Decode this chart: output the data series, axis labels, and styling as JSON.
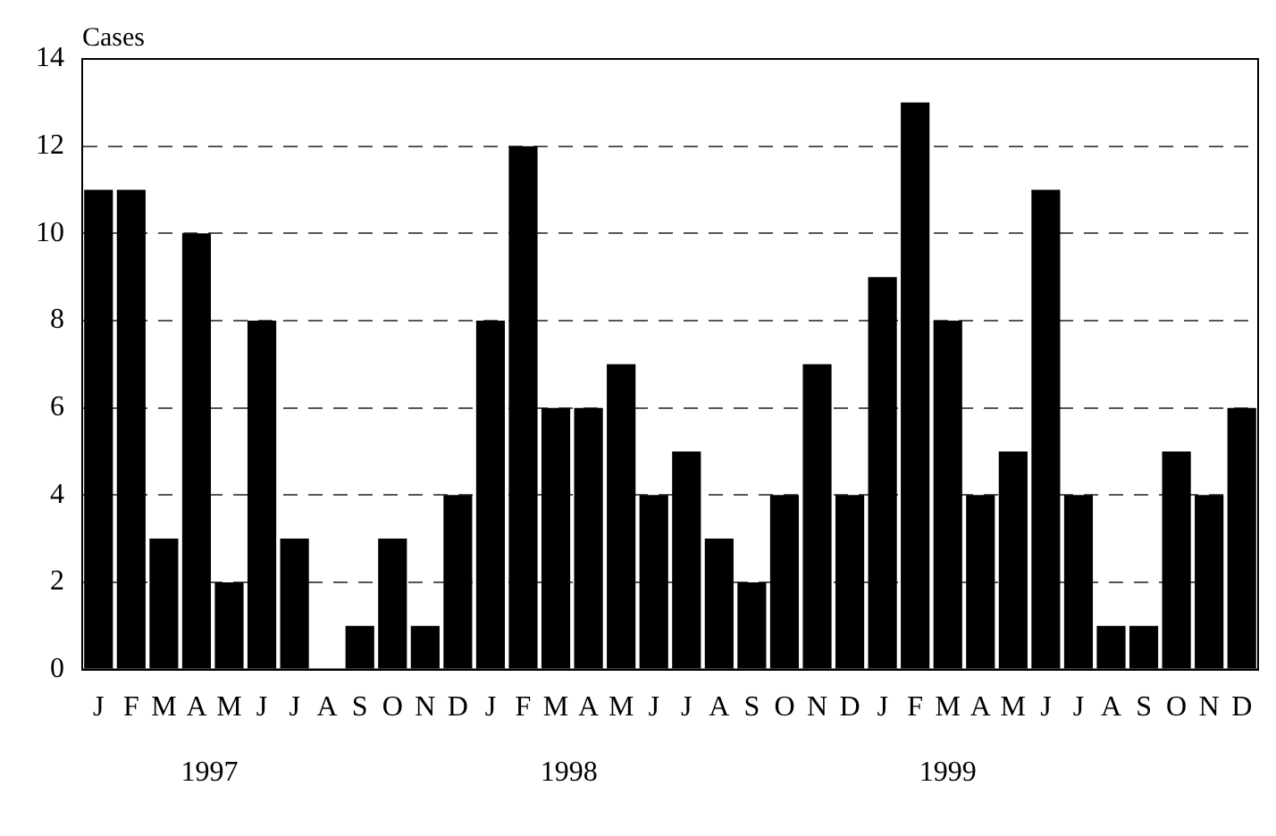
{
  "chart_data": {
    "type": "bar",
    "ylabel": "Cases",
    "categories": [
      "J",
      "F",
      "M",
      "A",
      "M",
      "J",
      "J",
      "A",
      "S",
      "O",
      "N",
      "D",
      "J",
      "F",
      "M",
      "A",
      "M",
      "J",
      "J",
      "A",
      "S",
      "O",
      "N",
      "D",
      "J",
      "F",
      "M",
      "A",
      "M",
      "J",
      "J",
      "A",
      "S",
      "O",
      "N",
      "D"
    ],
    "values": [
      11,
      11,
      3,
      10,
      2,
      8,
      3,
      0,
      1,
      3,
      1,
      4,
      8,
      12,
      6,
      6,
      7,
      4,
      5,
      3,
      2,
      4,
      7,
      4,
      9,
      13,
      8,
      4,
      5,
      11,
      4,
      1,
      1,
      5,
      4,
      6
    ],
    "color": "#000000",
    "ylim": [
      0,
      14
    ],
    "yticks": [
      0,
      2,
      4,
      6,
      8,
      10,
      12,
      14
    ],
    "grid": "y",
    "legend": false,
    "annotations": [
      "1997",
      "1998",
      "1999"
    ]
  }
}
